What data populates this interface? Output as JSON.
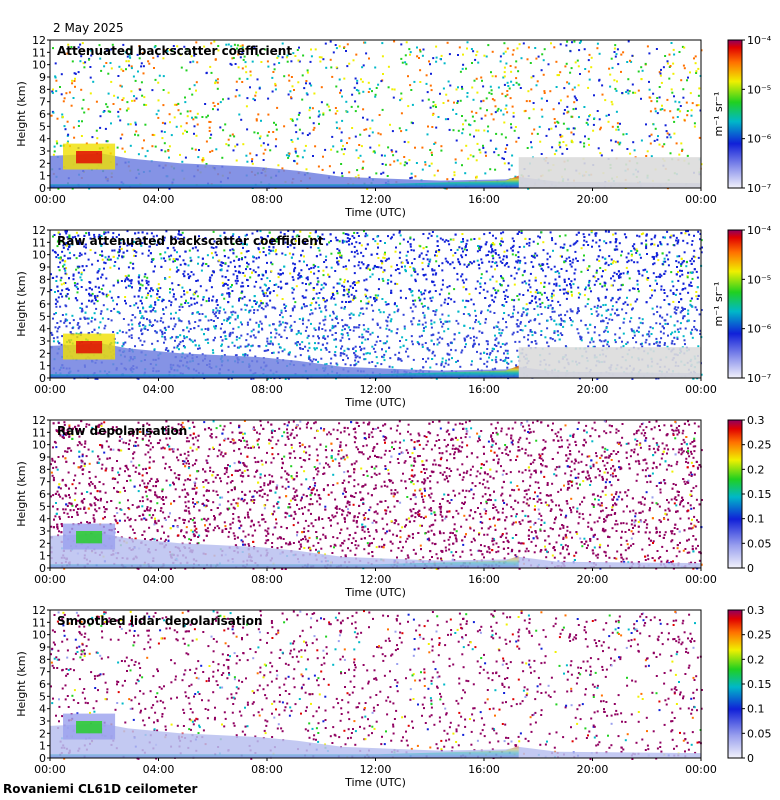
{
  "date": "2 May 2025",
  "footer": "Rovaniemi CL61D ceilometer",
  "chart_data": [
    {
      "type": "heatmap",
      "title": "Attenuated backscatter coefficient",
      "xlabel": "Time (UTC)",
      "ylabel": "Height (km)",
      "xticks": [
        "00:00",
        "04:00",
        "08:00",
        "12:00",
        "16:00",
        "20:00",
        "00:00"
      ],
      "yticks": [
        0,
        1,
        2,
        3,
        4,
        5,
        6,
        7,
        8,
        9,
        10,
        11,
        12
      ],
      "ylim": [
        0,
        12
      ],
      "colorbar": {
        "scale": "log",
        "range": [
          1e-07,
          0.0001
        ],
        "ticks": [
          "10⁻⁷",
          "10⁻⁶",
          "10⁻⁵",
          "10⁻⁴"
        ],
        "unit": "m⁻¹ sr⁻¹"
      }
    },
    {
      "type": "heatmap",
      "title": "Raw attenuated backscatter coefficient",
      "xlabel": "Time (UTC)",
      "ylabel": "Height (km)",
      "xticks": [
        "00:00",
        "04:00",
        "08:00",
        "12:00",
        "16:00",
        "20:00",
        "00:00"
      ],
      "yticks": [
        0,
        1,
        2,
        3,
        4,
        5,
        6,
        7,
        8,
        9,
        10,
        11,
        12
      ],
      "ylim": [
        0,
        12
      ],
      "colorbar": {
        "scale": "log",
        "range": [
          1e-07,
          0.0001
        ],
        "ticks": [
          "10⁻⁷",
          "10⁻⁶",
          "10⁻⁵",
          "10⁻⁴"
        ],
        "unit": "m⁻¹ sr⁻¹"
      }
    },
    {
      "type": "heatmap",
      "title": "Raw depolarisation",
      "xlabel": "Time (UTC)",
      "ylabel": "Height (km)",
      "xticks": [
        "00:00",
        "04:00",
        "08:00",
        "12:00",
        "16:00",
        "20:00",
        "00:00"
      ],
      "yticks": [
        0,
        1,
        2,
        3,
        4,
        5,
        6,
        7,
        8,
        9,
        10,
        11,
        12
      ],
      "ylim": [
        0,
        12
      ],
      "colorbar": {
        "scale": "linear",
        "range": [
          0,
          0.3
        ],
        "ticks": [
          "0",
          "0.05",
          "0.1",
          "0.15",
          "0.2",
          "0.25",
          "0.3"
        ],
        "unit": ""
      }
    },
    {
      "type": "heatmap",
      "title": "Smoothed lidar depolarisation",
      "xlabel": "Time (UTC)",
      "ylabel": "Height (km)",
      "xticks": [
        "00:00",
        "04:00",
        "08:00",
        "12:00",
        "16:00",
        "20:00",
        "00:00"
      ],
      "yticks": [
        0,
        1,
        2,
        3,
        4,
        5,
        6,
        7,
        8,
        9,
        10,
        11,
        12
      ],
      "ylim": [
        0,
        12
      ],
      "colorbar": {
        "scale": "linear",
        "range": [
          0,
          0.3
        ],
        "ticks": [
          "0",
          "0.05",
          "0.1",
          "0.15",
          "0.2",
          "0.25",
          "0.3"
        ],
        "unit": ""
      }
    }
  ]
}
